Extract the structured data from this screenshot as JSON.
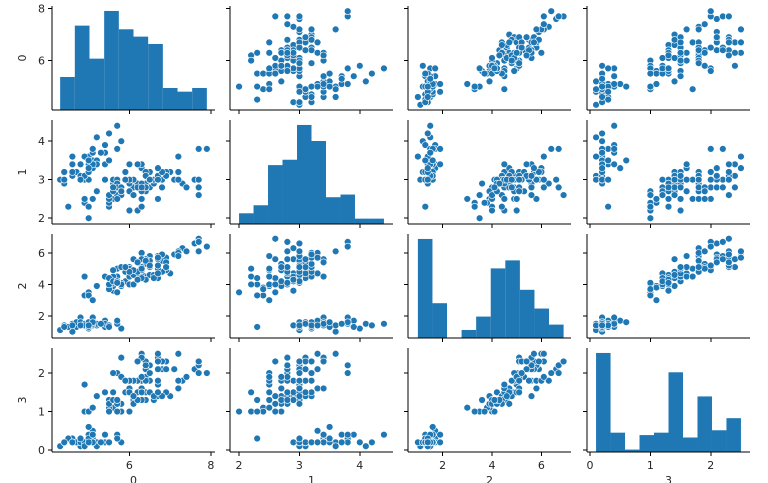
{
  "chart_data": {
    "type": "pairplot",
    "variables": [
      "0",
      "1",
      "2",
      "3"
    ],
    "colors": {
      "series": "#1f77b4",
      "edge": "#ffffff"
    },
    "grid": false,
    "bins": 10,
    "ranges": {
      "0": [
        4.1,
        8.1
      ],
      "1": [
        1.85,
        4.55
      ],
      "2": [
        0.6,
        7.2
      ],
      "3": [
        -0.05,
        2.65
      ]
    },
    "ticks": {
      "0": [
        6,
        8
      ],
      "1": [
        2,
        3,
        4
      ],
      "2": [
        2,
        4,
        6
      ],
      "3": [
        0,
        1,
        2
      ]
    },
    "row_ticks": {
      "0": [
        6,
        8
      ]
    },
    "col_ticks": {
      "0": [
        6,
        8
      ],
      "1": [
        2,
        3,
        4
      ],
      "2": [
        2,
        4,
        6
      ],
      "3": [
        0,
        1,
        2
      ]
    },
    "rows": [
      [
        5.1,
        3.5,
        1.4,
        0.2
      ],
      [
        4.9,
        3.0,
        1.4,
        0.2
      ],
      [
        4.7,
        3.2,
        1.3,
        0.2
      ],
      [
        4.6,
        3.1,
        1.5,
        0.2
      ],
      [
        5.0,
        3.6,
        1.4,
        0.2
      ],
      [
        5.4,
        3.9,
        1.7,
        0.4
      ],
      [
        4.6,
        3.4,
        1.4,
        0.3
      ],
      [
        5.0,
        3.4,
        1.5,
        0.2
      ],
      [
        4.4,
        2.9,
        1.4,
        0.2
      ],
      [
        4.9,
        3.1,
        1.5,
        0.1
      ],
      [
        5.4,
        3.7,
        1.5,
        0.2
      ],
      [
        4.8,
        3.4,
        1.6,
        0.2
      ],
      [
        4.8,
        3.0,
        1.4,
        0.1
      ],
      [
        4.3,
        3.0,
        1.1,
        0.1
      ],
      [
        5.8,
        4.0,
        1.2,
        0.2
      ],
      [
        5.7,
        4.4,
        1.5,
        0.4
      ],
      [
        5.4,
        3.9,
        1.3,
        0.4
      ],
      [
        5.1,
        3.5,
        1.4,
        0.3
      ],
      [
        5.7,
        3.8,
        1.7,
        0.3
      ],
      [
        5.1,
        3.8,
        1.5,
        0.3
      ],
      [
        5.4,
        3.4,
        1.7,
        0.2
      ],
      [
        5.1,
        3.7,
        1.5,
        0.4
      ],
      [
        4.6,
        3.6,
        1.0,
        0.2
      ],
      [
        5.1,
        3.3,
        1.7,
        0.5
      ],
      [
        4.8,
        3.4,
        1.9,
        0.2
      ],
      [
        5.0,
        3.0,
        1.6,
        0.2
      ],
      [
        5.0,
        3.4,
        1.6,
        0.4
      ],
      [
        5.2,
        3.5,
        1.5,
        0.2
      ],
      [
        5.2,
        3.4,
        1.4,
        0.2
      ],
      [
        4.7,
        3.2,
        1.6,
        0.2
      ],
      [
        4.8,
        3.1,
        1.6,
        0.2
      ],
      [
        5.4,
        3.4,
        1.5,
        0.4
      ],
      [
        5.2,
        4.1,
        1.5,
        0.1
      ],
      [
        5.5,
        4.2,
        1.4,
        0.2
      ],
      [
        4.9,
        3.1,
        1.5,
        0.2
      ],
      [
        5.0,
        3.2,
        1.2,
        0.2
      ],
      [
        5.5,
        3.5,
        1.3,
        0.2
      ],
      [
        4.9,
        3.6,
        1.4,
        0.1
      ],
      [
        4.4,
        3.0,
        1.3,
        0.2
      ],
      [
        5.1,
        3.4,
        1.5,
        0.2
      ],
      [
        5.0,
        3.5,
        1.3,
        0.3
      ],
      [
        4.5,
        2.3,
        1.3,
        0.3
      ],
      [
        4.4,
        3.2,
        1.3,
        0.2
      ],
      [
        5.0,
        3.5,
        1.6,
        0.6
      ],
      [
        5.1,
        3.8,
        1.9,
        0.4
      ],
      [
        4.8,
        3.0,
        1.4,
        0.3
      ],
      [
        5.1,
        3.8,
        1.6,
        0.2
      ],
      [
        4.6,
        3.2,
        1.4,
        0.2
      ],
      [
        5.3,
        3.7,
        1.5,
        0.2
      ],
      [
        5.0,
        3.3,
        1.4,
        0.2
      ],
      [
        7.0,
        3.2,
        4.7,
        1.4
      ],
      [
        6.4,
        3.2,
        4.5,
        1.5
      ],
      [
        6.9,
        3.1,
        4.9,
        1.5
      ],
      [
        5.5,
        2.3,
        4.0,
        1.3
      ],
      [
        6.5,
        2.8,
        4.6,
        1.5
      ],
      [
        5.7,
        2.8,
        4.5,
        1.3
      ],
      [
        6.3,
        3.3,
        4.7,
        1.6
      ],
      [
        4.9,
        2.4,
        3.3,
        1.0
      ],
      [
        6.6,
        2.9,
        4.6,
        1.3
      ],
      [
        5.2,
        2.7,
        3.9,
        1.4
      ],
      [
        5.0,
        2.0,
        3.5,
        1.0
      ],
      [
        5.9,
        3.0,
        4.2,
        1.5
      ],
      [
        6.0,
        2.2,
        4.0,
        1.0
      ],
      [
        6.1,
        2.9,
        4.7,
        1.4
      ],
      [
        5.6,
        2.9,
        3.6,
        1.3
      ],
      [
        6.7,
        3.1,
        4.4,
        1.4
      ],
      [
        5.6,
        3.0,
        4.5,
        1.5
      ],
      [
        5.8,
        2.7,
        4.1,
        1.0
      ],
      [
        6.2,
        2.2,
        4.5,
        1.5
      ],
      [
        5.6,
        2.5,
        3.9,
        1.1
      ],
      [
        5.9,
        3.2,
        4.8,
        1.8
      ],
      [
        6.1,
        2.8,
        4.0,
        1.3
      ],
      [
        6.3,
        2.5,
        4.9,
        1.5
      ],
      [
        6.1,
        2.8,
        4.7,
        1.2
      ],
      [
        6.4,
        2.9,
        4.3,
        1.3
      ],
      [
        6.6,
        3.0,
        4.4,
        1.4
      ],
      [
        6.8,
        2.8,
        4.8,
        1.4
      ],
      [
        6.7,
        3.0,
        5.0,
        1.7
      ],
      [
        6.0,
        2.9,
        4.5,
        1.5
      ],
      [
        5.7,
        2.6,
        3.5,
        1.0
      ],
      [
        5.5,
        2.4,
        3.8,
        1.1
      ],
      [
        5.5,
        2.4,
        3.7,
        1.0
      ],
      [
        5.8,
        2.7,
        3.9,
        1.2
      ],
      [
        6.0,
        2.7,
        5.1,
        1.6
      ],
      [
        5.4,
        3.0,
        4.5,
        1.5
      ],
      [
        6.0,
        3.4,
        4.5,
        1.6
      ],
      [
        6.7,
        3.1,
        4.7,
        1.5
      ],
      [
        6.3,
        2.3,
        4.4,
        1.3
      ],
      [
        5.6,
        3.0,
        4.1,
        1.3
      ],
      [
        5.5,
        2.5,
        4.0,
        1.3
      ],
      [
        5.5,
        2.6,
        4.4,
        1.2
      ],
      [
        6.1,
        3.0,
        4.6,
        1.4
      ],
      [
        5.8,
        2.6,
        4.0,
        1.2
      ],
      [
        5.0,
        2.3,
        3.3,
        1.0
      ],
      [
        5.6,
        2.7,
        4.2,
        1.3
      ],
      [
        5.7,
        3.0,
        4.2,
        1.2
      ],
      [
        5.7,
        2.9,
        4.2,
        1.3
      ],
      [
        6.2,
        2.9,
        4.3,
        1.3
      ],
      [
        5.1,
        2.5,
        3.0,
        1.1
      ],
      [
        5.7,
        2.8,
        4.1,
        1.3
      ],
      [
        6.3,
        3.3,
        6.0,
        2.5
      ],
      [
        5.8,
        2.7,
        5.1,
        1.9
      ],
      [
        7.1,
        3.0,
        5.9,
        2.1
      ],
      [
        6.3,
        2.9,
        5.6,
        1.8
      ],
      [
        6.5,
        3.0,
        5.8,
        2.2
      ],
      [
        7.6,
        3.0,
        6.6,
        2.1
      ],
      [
        4.9,
        2.5,
        4.5,
        1.7
      ],
      [
        7.3,
        2.9,
        6.3,
        1.8
      ],
      [
        6.7,
        2.5,
        5.8,
        1.8
      ],
      [
        7.2,
        3.6,
        6.1,
        2.5
      ],
      [
        6.5,
        3.2,
        5.1,
        2.0
      ],
      [
        6.4,
        2.7,
        5.3,
        1.9
      ],
      [
        6.8,
        3.0,
        5.5,
        2.1
      ],
      [
        5.7,
        2.5,
        5.0,
        2.0
      ],
      [
        5.8,
        2.8,
        5.1,
        2.4
      ],
      [
        6.4,
        3.2,
        5.3,
        2.3
      ],
      [
        6.5,
        3.0,
        5.5,
        1.8
      ],
      [
        7.7,
        3.8,
        6.7,
        2.2
      ],
      [
        7.7,
        2.6,
        6.9,
        2.3
      ],
      [
        6.0,
        2.2,
        5.0,
        1.5
      ],
      [
        6.9,
        3.2,
        5.7,
        2.3
      ],
      [
        5.6,
        2.8,
        4.9,
        2.0
      ],
      [
        7.7,
        2.8,
        6.7,
        2.0
      ],
      [
        6.3,
        2.7,
        4.9,
        1.8
      ],
      [
        6.7,
        3.3,
        5.7,
        2.1
      ],
      [
        7.2,
        3.2,
        6.0,
        1.8
      ],
      [
        6.2,
        2.8,
        4.8,
        1.8
      ],
      [
        6.1,
        3.0,
        4.9,
        1.8
      ],
      [
        6.4,
        2.8,
        5.6,
        2.1
      ],
      [
        7.2,
        3.0,
        5.8,
        1.6
      ],
      [
        7.4,
        2.8,
        6.1,
        1.9
      ],
      [
        7.9,
        3.8,
        6.4,
        2.0
      ],
      [
        6.4,
        2.8,
        5.6,
        2.2
      ],
      [
        6.3,
        2.8,
        5.1,
        1.5
      ],
      [
        6.1,
        2.6,
        5.6,
        1.4
      ],
      [
        7.7,
        3.0,
        6.1,
        2.3
      ],
      [
        6.3,
        3.4,
        5.6,
        2.4
      ],
      [
        6.4,
        3.1,
        5.5,
        1.8
      ],
      [
        6.0,
        3.0,
        4.8,
        1.8
      ],
      [
        6.9,
        3.1,
        5.4,
        2.1
      ],
      [
        6.7,
        3.1,
        5.6,
        2.4
      ],
      [
        6.9,
        3.1,
        5.1,
        2.3
      ],
      [
        5.8,
        2.7,
        5.1,
        1.9
      ],
      [
        6.8,
        3.2,
        5.9,
        2.3
      ],
      [
        6.7,
        3.3,
        5.7,
        2.5
      ],
      [
        6.7,
        3.0,
        5.2,
        2.3
      ],
      [
        6.3,
        2.5,
        5.0,
        1.9
      ],
      [
        6.5,
        3.0,
        5.2,
        2.0
      ],
      [
        6.2,
        3.4,
        5.4,
        2.3
      ],
      [
        5.9,
        3.0,
        5.1,
        1.8
      ]
    ]
  }
}
